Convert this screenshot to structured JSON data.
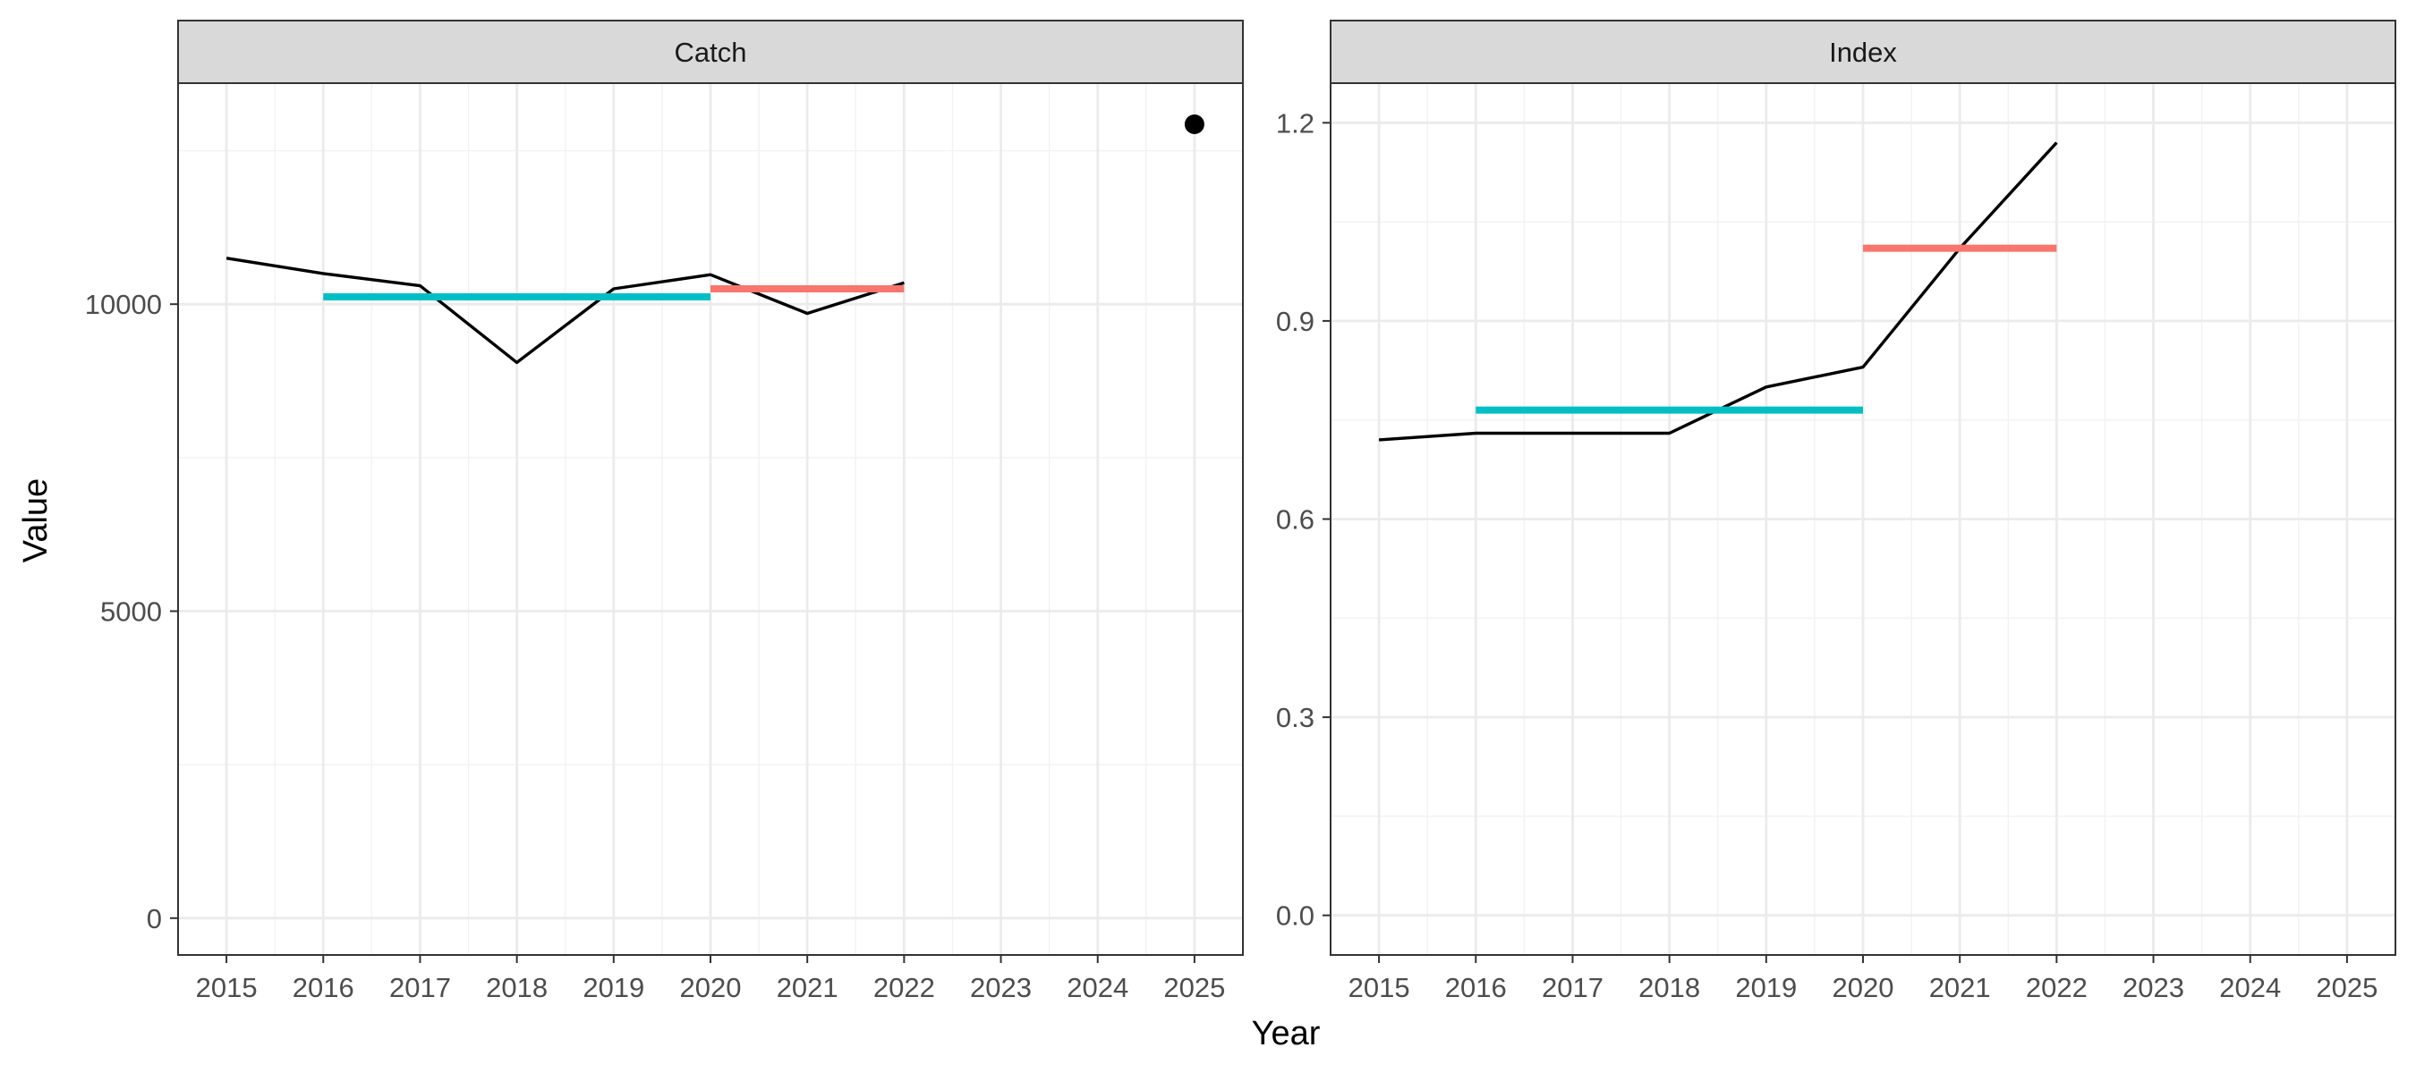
{
  "chart_data": {
    "type": "line",
    "facet_variable": "panel",
    "xlabel": "Year",
    "ylabel": "Value",
    "grid": true,
    "legend": "none",
    "x_ticks": [
      2015,
      2016,
      2017,
      2018,
      2019,
      2020,
      2021,
      2022,
      2023,
      2024,
      2025
    ],
    "xlim": [
      2014.5,
      2025.5
    ],
    "colors": {
      "observed": "#000000",
      "reference_mean": "#00BFC4",
      "recent_mean": "#F8766D",
      "projection": "#000000",
      "strip": "#D9D9D9"
    },
    "panels": [
      {
        "strip": "Catch",
        "ylim": [
          -600,
          13600
        ],
        "y_ticks": [
          0,
          5000,
          10000
        ],
        "y_tick_labels": [
          "0",
          "5000",
          "10000"
        ],
        "series": [
          {
            "type": "line",
            "x": [
              2015,
              2016,
              2017,
              2018,
              2019,
              2020,
              2021,
              2022
            ],
            "y": [
              10750,
              10500,
              10300,
              9050,
              10250,
              10480,
              9850,
              10350
            ]
          },
          {
            "type": "segment",
            "x": [
              2016,
              2020
            ],
            "y": [
              10120,
              10120
            ]
          },
          {
            "type": "segment",
            "x": [
              2020,
              2022
            ],
            "y": [
              10250,
              10250
            ]
          },
          {
            "type": "point",
            "x": [
              2025
            ],
            "y": [
              12930
            ]
          }
        ]
      },
      {
        "strip": "Index",
        "ylim": [
          -0.06,
          1.26
        ],
        "y_ticks": [
          0.0,
          0.3,
          0.6,
          0.9,
          1.2
        ],
        "y_tick_labels": [
          "0.0",
          "0.3",
          "0.6",
          "0.9",
          "1.2"
        ],
        "series": [
          {
            "type": "line",
            "x": [
              2015,
              2016,
              2017,
              2018,
              2019,
              2020,
              2021,
              2022
            ],
            "y": [
              0.72,
              0.73,
              0.73,
              0.73,
              0.8,
              0.83,
              1.01,
              1.17
            ]
          },
          {
            "type": "segment",
            "x": [
              2016,
              2020
            ],
            "y": [
              0.765,
              0.765
            ]
          },
          {
            "type": "segment",
            "x": [
              2020,
              2022
            ],
            "y": [
              1.01,
              1.01
            ]
          }
        ]
      }
    ]
  }
}
